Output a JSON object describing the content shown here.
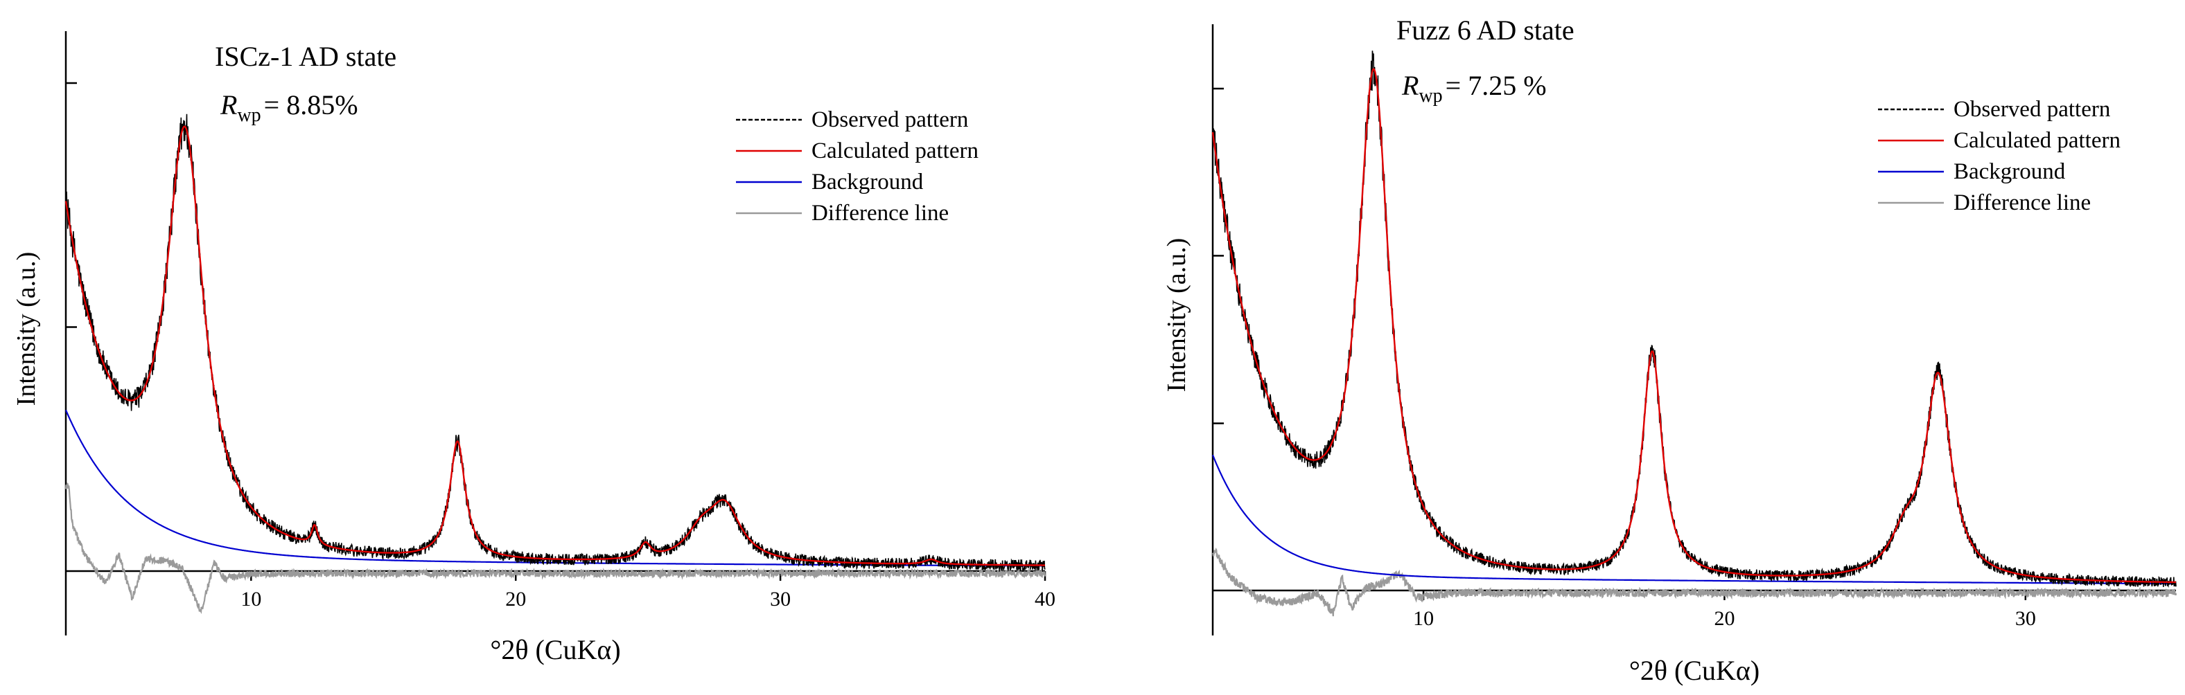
{
  "chart_data": [
    {
      "type": "line",
      "title": "ISCz-1  AD state",
      "rwp": {
        "symbol": "R",
        "subscript": "wp",
        "value": "= 8.85%"
      },
      "xlabel": "°2θ (CuKα)",
      "ylabel": "Intensity (a.u.)",
      "xlim": [
        3,
        40
      ],
      "ylim": [
        0,
        100
      ],
      "xticks": [
        10,
        20,
        30,
        40
      ],
      "ytick_values": [
        0,
        50,
        100
      ],
      "legend": {
        "position": "top-right",
        "entries": [
          "Observed pattern",
          "Calculated pattern",
          "Background",
          "Difference line"
        ]
      },
      "colors": {
        "observed": "#000000",
        "calculated": "#e00000",
        "background": "#0000d0",
        "difference": "#9a9a9a"
      },
      "model": {
        "baseline": 0.5,
        "background": [
          {
            "amp": 30,
            "tau": 2.4
          },
          {
            "amp": 2.5,
            "tau": 25
          }
        ],
        "low_angle": {
          "amp": 40,
          "tau": 1.7
        },
        "peaks": [
          {
            "center": 7.5,
            "height": 81,
            "width": 0.85
          },
          {
            "center": 12.4,
            "height": 4,
            "width": 0.14
          },
          {
            "center": 17.8,
            "height": 24,
            "width": 0.36
          },
          {
            "center": 24.9,
            "height": 3,
            "width": 0.25
          },
          {
            "center": 27.0,
            "height": 5,
            "width": 0.7
          },
          {
            "center": 27.9,
            "height": 11,
            "width": 0.75
          },
          {
            "center": 35.7,
            "height": 1,
            "width": 0.3
          }
        ],
        "observed_noise": 1.1,
        "difference_offset": -0.5,
        "difference_noise": 0.7,
        "difference_features": [
          {
            "x": 3.1,
            "y": 18
          },
          {
            "x": 3.25,
            "y": 10
          },
          {
            "x": 3.7,
            "y": 4
          },
          {
            "x": 4.5,
            "y": -2
          },
          {
            "x": 5.0,
            "y": 4
          },
          {
            "x": 5.5,
            "y": -5
          },
          {
            "x": 6.0,
            "y": 3
          },
          {
            "x": 6.8,
            "y": 2.5
          },
          {
            "x": 7.4,
            "y": 1
          },
          {
            "x": 7.8,
            "y": -4
          },
          {
            "x": 8.1,
            "y": -8
          },
          {
            "x": 8.6,
            "y": 2
          },
          {
            "x": 9.0,
            "y": -1
          },
          {
            "x": 10,
            "y": 0
          }
        ]
      }
    },
    {
      "type": "line",
      "title": "Fuzz 6  AD state",
      "rwp": {
        "symbol": "R",
        "subscript": "wp",
        "value": "= 7.25 %"
      },
      "xlabel": "°2θ (CuKα)",
      "ylabel": "Intensity (a.u.)",
      "xlim": [
        3,
        35
      ],
      "ylim": [
        0,
        100
      ],
      "xticks": [
        10,
        20,
        30
      ],
      "ytick_values": [
        0,
        33.3,
        66.7,
        100
      ],
      "legend": {
        "position": "top-right",
        "entries": [
          "Observed pattern",
          "Calculated pattern",
          "Background",
          "Difference line"
        ]
      },
      "colors": {
        "observed": "#000000",
        "calculated": "#e00000",
        "background": "#0000d0",
        "difference": "#9a9a9a"
      },
      "model": {
        "baseline": 0.5,
        "background": [
          {
            "amp": 24,
            "tau": 1.6
          },
          {
            "amp": 2.5,
            "tau": 30
          }
        ],
        "low_angle": {
          "amp": 63,
          "tau": 2.0
        },
        "peaks": [
          {
            "center": 8.35,
            "height": 96,
            "width": 0.62
          },
          {
            "center": 17.6,
            "height": 45,
            "width": 0.4
          },
          {
            "center": 26.0,
            "height": 7,
            "width": 0.6
          },
          {
            "center": 27.1,
            "height": 40,
            "width": 0.52
          }
        ],
        "observed_noise": 1.0,
        "difference_offset": -0.5,
        "difference_noise": 0.8,
        "difference_features": [
          {
            "x": 3.1,
            "y": 8
          },
          {
            "x": 3.6,
            "y": 3
          },
          {
            "x": 4.5,
            "y": -1
          },
          {
            "x": 5.5,
            "y": -2
          },
          {
            "x": 6.5,
            "y": 0
          },
          {
            "x": 7.0,
            "y": -4
          },
          {
            "x": 7.3,
            "y": 3
          },
          {
            "x": 7.6,
            "y": -3
          },
          {
            "x": 8.1,
            "y": 1
          },
          {
            "x": 8.7,
            "y": 2
          },
          {
            "x": 9.2,
            "y": 4
          },
          {
            "x": 9.8,
            "y": -1
          },
          {
            "x": 11,
            "y": 0
          }
        ]
      }
    }
  ]
}
